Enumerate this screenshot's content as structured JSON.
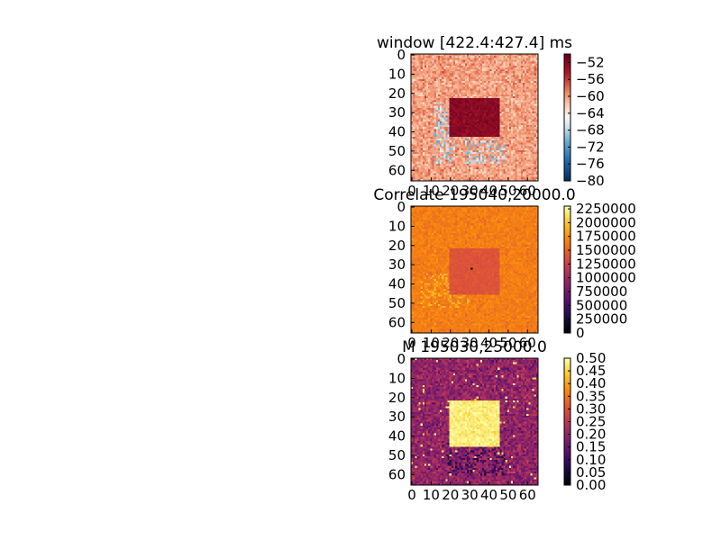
{
  "chart_data": [
    {
      "type": "heatmap",
      "title": "window [422.4:427.4] ms",
      "x_ticks": [
        "0",
        "10",
        "20",
        "30",
        "40",
        "50",
        "60"
      ],
      "y_ticks": [
        "0",
        "10",
        "20",
        "30",
        "40",
        "50",
        "60"
      ],
      "xlim": [
        0,
        66
      ],
      "ylim": [
        0,
        66
      ],
      "grid": false,
      "colormap": "RdBu_r",
      "colorbar": {
        "range": [
          -80,
          -50
        ],
        "ticks": [
          "−52",
          "−56",
          "−60",
          "−64",
          "−68",
          "−72",
          "−76",
          "−80"
        ],
        "tick_values": [
          -52,
          -56,
          -60,
          -64,
          -68,
          -72,
          -76,
          -80
        ]
      },
      "pattern": "noisy field around -60; square block around -52 near rows 23-42, cols 20-45; light-blue patches near rows 25-55",
      "center_block": {
        "rows": [
          23,
          42
        ],
        "cols": [
          20,
          45
        ],
        "value": -52
      },
      "background_value": -60
    },
    {
      "type": "heatmap",
      "title": "Correlate 195040,20000.0",
      "x_ticks": [
        "0",
        "10",
        "20",
        "30",
        "40",
        "50",
        "60"
      ],
      "y_ticks": [
        "0",
        "10",
        "20",
        "30",
        "40",
        "50",
        "60"
      ],
      "xlim": [
        0,
        66
      ],
      "ylim": [
        0,
        66
      ],
      "grid": false,
      "colormap": "inferno",
      "colorbar": {
        "range": [
          0,
          2300000
        ],
        "ticks": [
          "2250000",
          "2000000",
          "1750000",
          "1500000",
          "1250000",
          "1000000",
          "750000",
          "500000",
          "250000",
          "0"
        ],
        "tick_values": [
          2250000,
          2000000,
          1750000,
          1500000,
          1250000,
          1000000,
          750000,
          500000,
          250000,
          0
        ]
      },
      "pattern": "field around 1650000; darker square block around 1400000 near rows 22-45, cols 20-45; single black pixel near center",
      "center_block": {
        "rows": [
          22,
          45
        ],
        "cols": [
          20,
          45
        ],
        "value": 1400000
      },
      "background_value": 1650000
    },
    {
      "type": "heatmap",
      "title": "M 195030,25000.0",
      "x_ticks": [
        "0",
        "10",
        "20",
        "30",
        "40",
        "50",
        "60"
      ],
      "y_ticks": [
        "0",
        "10",
        "20",
        "30",
        "40",
        "50",
        "60"
      ],
      "xlim": [
        0,
        66
      ],
      "ylim": [
        0,
        66
      ],
      "grid": false,
      "colormap": "inferno",
      "colorbar": {
        "range": [
          0,
          0.5
        ],
        "ticks": [
          "0.50",
          "0.45",
          "0.40",
          "0.35",
          "0.30",
          "0.25",
          "0.20",
          "0.15",
          "0.10",
          "0.05",
          "0.00"
        ],
        "tick_values": [
          0.5,
          0.45,
          0.4,
          0.35,
          0.3,
          0.25,
          0.2,
          0.15,
          0.1,
          0.05,
          0.0
        ]
      },
      "pattern": "noisy purple field around 0.2; bright yellow square block around 0.48 near rows 22-45, cols 20-45; darker patches below center",
      "center_block": {
        "rows": [
          22,
          45
        ],
        "cols": [
          20,
          45
        ],
        "value": 0.48
      },
      "background_value": 0.2
    }
  ]
}
